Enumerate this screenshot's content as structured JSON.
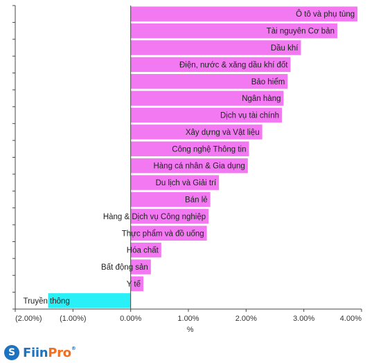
{
  "chart_data": {
    "type": "bar",
    "orientation": "horizontal",
    "categories": [
      "Ô tô và phụ tùng",
      "Tài nguyên Cơ bản",
      "Dầu khí",
      "Điện, nước & xăng dầu khí đốt",
      "Bảo hiểm",
      "Ngân hàng",
      "Dịch vụ tài chính",
      "Xây dựng và Vật liệu",
      "Công nghệ Thông tin",
      "Hàng cá nhân & Gia dụng",
      "Du lịch và Giải trí",
      "Bán lẻ",
      "Hàng & Dịch vụ Công nghiệp",
      "Thực phẩm và đồ uống",
      "Hóa chất",
      "Bất động sản",
      "Y tế",
      "Truyền thông"
    ],
    "values": [
      3.93,
      3.58,
      2.95,
      2.77,
      2.72,
      2.65,
      2.62,
      2.28,
      2.05,
      2.03,
      1.53,
      1.38,
      1.35,
      1.32,
      0.53,
      0.35,
      0.22,
      -1.43
    ],
    "xlim": [
      -2.0,
      4.0
    ],
    "xticks": [
      "(2.00%)",
      "(1.00%)",
      "0.00%",
      "1.00%",
      "2.00%",
      "3.00%",
      "4.00%"
    ],
    "xlabel": "%",
    "colors": {
      "positive": "#f279f2",
      "negative": "#29f0f7"
    },
    "grid": false,
    "legend": "none"
  },
  "branding": {
    "logo_icon": "fiinpro-logo-icon",
    "logo_left": "Fiin",
    "logo_right": "Pro",
    "registered": "®"
  }
}
